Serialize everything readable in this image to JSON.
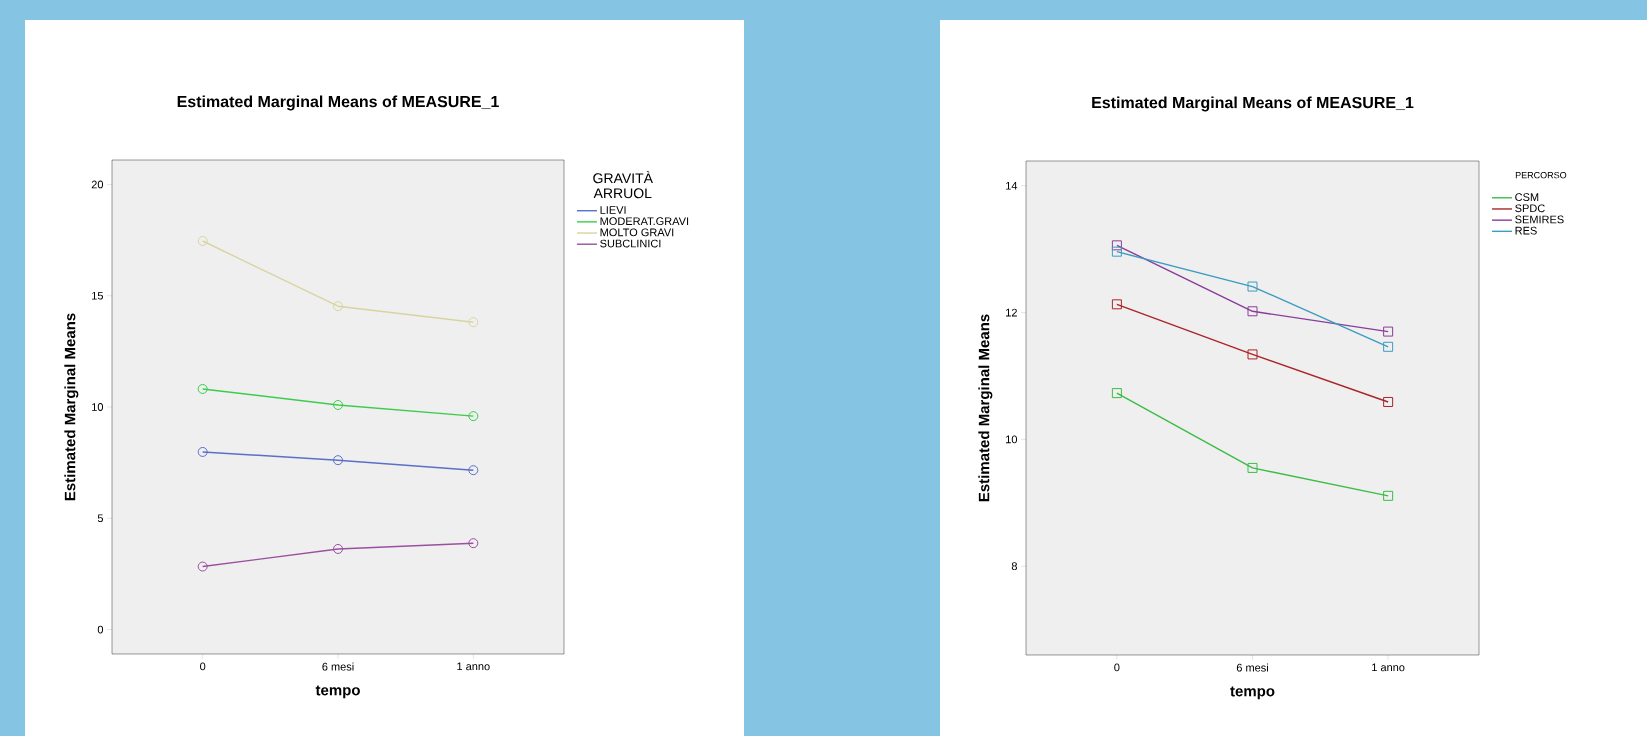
{
  "chart_data": [
    {
      "type": "line",
      "title": "Estimated Marginal Means of MEASURE_1",
      "xlabel": "tempo",
      "ylabel": "Estimated Marginal Means",
      "legend_title": "GRAVITÀ ARRUOL",
      "categories": [
        "0",
        "6 mesi",
        "1 anno"
      ],
      "series": [
        {
          "name": "LIEVI",
          "color": "#5a6fc8",
          "values": [
            7.98,
            7.61,
            7.16
          ]
        },
        {
          "name": "MODERAT.GRAVI",
          "color": "#3ccc4c",
          "values": [
            10.81,
            10.09,
            9.59
          ]
        },
        {
          "name": "MOLTO GRAVI",
          "color": "#d8d4a0",
          "values": [
            17.46,
            14.53,
            13.81
          ]
        },
        {
          "name": "SUBCLINICI",
          "color": "#9a4fa0",
          "values": [
            2.83,
            3.62,
            3.88
          ]
        }
      ],
      "ylim": [
        -1.1,
        21.1
      ],
      "yticks": [
        0,
        5,
        10,
        15,
        20
      ],
      "marker": "circle",
      "legend": "top right"
    },
    {
      "type": "line",
      "title": "Estimated Marginal Means of MEASURE_1",
      "xlabel": "tempo",
      "ylabel": "Estimated Marginal Means",
      "legend_title": "PERCORSO",
      "categories": [
        "0",
        "6 mesi",
        "1 anno"
      ],
      "series": [
        {
          "name": "CSM",
          "color": "#3cbc44",
          "values": [
            10.73,
            9.55,
            9.11
          ]
        },
        {
          "name": "SPDC",
          "color": "#aa2428",
          "values": [
            12.13,
            11.34,
            10.59
          ]
        },
        {
          "name": "SEMIRES",
          "color": "#8a3c9a",
          "values": [
            13.06,
            12.02,
            11.7
          ]
        },
        {
          "name": "RES",
          "color": "#3c9cc0",
          "values": [
            12.96,
            12.41,
            11.46
          ]
        }
      ],
      "ylim": [
        6.6,
        14.39
      ],
      "yticks": [
        8,
        10,
        12,
        14
      ],
      "marker": "square",
      "legend": "top right"
    }
  ]
}
